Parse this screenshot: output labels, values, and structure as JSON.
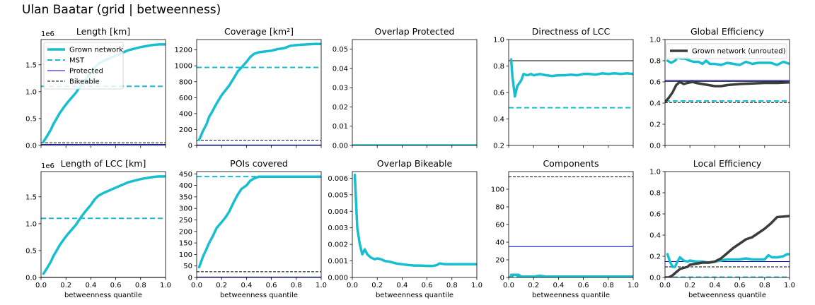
{
  "figure": {
    "title": "Ulan Baatar (grid | betweenness)"
  },
  "colors": {
    "grown": "#17becf",
    "mst": "#17becf",
    "protected": "#0000cc",
    "bikeable": "#000000",
    "unrouted": "#3c3c3c"
  },
  "chart_data": [
    {
      "id": "length",
      "type": "line",
      "title": "Length [km]",
      "xlabel": "",
      "ylabel": "",
      "xlim": [
        0,
        1
      ],
      "ylim": [
        0,
        1.97
      ],
      "y_ticks": [
        "0.0",
        "0.5",
        "1.0",
        "1.5"
      ],
      "y_tick_values": [
        0,
        0.5,
        1.0,
        1.5
      ],
      "offset_label": "1e6",
      "x_ticklabels": false,
      "legend": {
        "position": "top-left",
        "entries": [
          {
            "label": "Grown network",
            "style": "thick"
          },
          {
            "label": "MST",
            "style": "dashed"
          },
          {
            "label": "Protected",
            "style": "thin-blue"
          },
          {
            "label": "Bikeable",
            "style": "dashed-black"
          }
        ]
      },
      "hlines": [
        {
          "y": 1.1,
          "style": "mst"
        },
        {
          "y": 0.02,
          "style": "protected"
        },
        {
          "y": 0.05,
          "style": "bikeable"
        }
      ],
      "series": [
        {
          "name": "Grown network",
          "style": "grown",
          "x": [
            0.02,
            0.05,
            0.08,
            0.1,
            0.12,
            0.15,
            0.18,
            0.2,
            0.22,
            0.25,
            0.28,
            0.3,
            0.33,
            0.36,
            0.4,
            0.43,
            0.46,
            0.5,
            0.55,
            0.6,
            0.65,
            0.7,
            0.75,
            0.8,
            0.85,
            0.9,
            0.95,
            1.0
          ],
          "y": [
            0.07,
            0.18,
            0.3,
            0.4,
            0.48,
            0.6,
            0.7,
            0.76,
            0.82,
            0.9,
            0.98,
            1.05,
            1.15,
            1.24,
            1.35,
            1.45,
            1.52,
            1.57,
            1.62,
            1.67,
            1.72,
            1.77,
            1.8,
            1.83,
            1.85,
            1.87,
            1.88,
            1.88
          ]
        }
      ]
    },
    {
      "id": "coverage",
      "type": "line",
      "title": "Coverage [km²]",
      "xlabel": "",
      "ylabel": "",
      "xlim": [
        0,
        1
      ],
      "ylim": [
        0,
        1330
      ],
      "y_ticks": [
        "0",
        "200",
        "400",
        "600",
        "800",
        "1000",
        "1200"
      ],
      "y_tick_values": [
        0,
        200,
        400,
        600,
        800,
        1000,
        1200
      ],
      "x_ticklabels": false,
      "hlines": [
        {
          "y": 980,
          "style": "mst"
        },
        {
          "y": 65,
          "style": "bikeable"
        },
        {
          "y": 5,
          "style": "protected"
        }
      ],
      "series": [
        {
          "name": "Grown network",
          "style": "grown",
          "x": [
            0.02,
            0.05,
            0.08,
            0.1,
            0.12,
            0.15,
            0.18,
            0.2,
            0.23,
            0.26,
            0.3,
            0.33,
            0.36,
            0.4,
            0.43,
            0.46,
            0.5,
            0.55,
            0.6,
            0.65,
            0.7,
            0.75,
            0.8,
            0.85,
            0.9,
            0.95,
            1.0
          ],
          "y": [
            70,
            180,
            270,
            360,
            410,
            500,
            580,
            630,
            690,
            750,
            850,
            930,
            980,
            1050,
            1110,
            1150,
            1170,
            1180,
            1190,
            1210,
            1220,
            1250,
            1260,
            1265,
            1270,
            1275,
            1275
          ]
        }
      ]
    },
    {
      "id": "overlap-protected",
      "type": "line",
      "title": "Overlap Protected",
      "xlabel": "",
      "ylabel": "",
      "xlim": [
        0,
        1
      ],
      "ylim": [
        0,
        0.055
      ],
      "y_ticks": [
        "0.00",
        "0.01",
        "0.02",
        "0.03",
        "0.04",
        "0.05"
      ],
      "y_tick_values": [
        0,
        0.01,
        0.02,
        0.03,
        0.04,
        0.05
      ],
      "x_ticklabels": false,
      "hlines": [],
      "series": [
        {
          "name": "Grown network",
          "style": "grown",
          "x": [
            0.0,
            1.0
          ],
          "y": [
            0.0,
            0.0
          ]
        }
      ]
    },
    {
      "id": "directness",
      "type": "line",
      "title": "Directness of LCC",
      "xlabel": "",
      "ylabel": "",
      "xlim": [
        0,
        1
      ],
      "ylim": [
        0.2,
        1.0
      ],
      "y_ticks": [
        "0.2",
        "0.4",
        "0.6",
        "0.8",
        "1.0"
      ],
      "y_tick_values": [
        0.2,
        0.4,
        0.6,
        0.8,
        1.0
      ],
      "x_ticklabels": false,
      "hlines": [
        {
          "y": 0.84,
          "style": "bikeable-solid"
        },
        {
          "y": 0.485,
          "style": "mst"
        }
      ],
      "series": [
        {
          "name": "Grown network",
          "style": "grown",
          "x": [
            0.02,
            0.03,
            0.05,
            0.07,
            0.1,
            0.12,
            0.15,
            0.18,
            0.2,
            0.25,
            0.3,
            0.35,
            0.4,
            0.45,
            0.5,
            0.55,
            0.6,
            0.65,
            0.7,
            0.75,
            0.8,
            0.85,
            0.9,
            0.95,
            1.0
          ],
          "y": [
            0.85,
            0.72,
            0.57,
            0.65,
            0.69,
            0.74,
            0.73,
            0.74,
            0.73,
            0.74,
            0.73,
            0.725,
            0.73,
            0.73,
            0.735,
            0.73,
            0.74,
            0.74,
            0.735,
            0.745,
            0.74,
            0.745,
            0.74,
            0.745,
            0.74
          ]
        }
      ]
    },
    {
      "id": "global-efficiency",
      "type": "line",
      "title": "Global Efficiency",
      "xlabel": "",
      "ylabel": "",
      "xlim": [
        0,
        1
      ],
      "ylim": [
        0,
        1.0
      ],
      "y_ticks": [
        "0.0",
        "0.2",
        "0.4",
        "0.6",
        "0.8",
        "1.0"
      ],
      "y_tick_values": [
        0,
        0.2,
        0.4,
        0.6,
        0.8,
        1.0
      ],
      "x_ticklabels": false,
      "legend": {
        "position": "top-right",
        "entries": [
          {
            "label": "Grown network (unrouted)",
            "style": "unrouted"
          }
        ]
      },
      "hlines": [
        {
          "y": 0.615,
          "style": "protected"
        },
        {
          "y": 0.605,
          "style": "bikeable-solid"
        },
        {
          "y": 0.42,
          "style": "mst"
        },
        {
          "y": 0.405,
          "style": "bikeable"
        }
      ],
      "series": [
        {
          "name": "Grown network",
          "style": "grown",
          "x": [
            0.02,
            0.05,
            0.08,
            0.1,
            0.13,
            0.16,
            0.2,
            0.23,
            0.27,
            0.3,
            0.33,
            0.36,
            0.4,
            0.45,
            0.5,
            0.55,
            0.6,
            0.65,
            0.7,
            0.75,
            0.8,
            0.85,
            0.9,
            0.95,
            1.0
          ],
          "y": [
            0.8,
            0.78,
            0.8,
            0.83,
            0.82,
            0.82,
            0.8,
            0.79,
            0.79,
            0.77,
            0.8,
            0.77,
            0.77,
            0.76,
            0.78,
            0.77,
            0.76,
            0.79,
            0.77,
            0.78,
            0.78,
            0.78,
            0.76,
            0.79,
            0.77
          ]
        },
        {
          "name": "Grown network (unrouted)",
          "style": "unrouted",
          "x": [
            0.0,
            0.03,
            0.06,
            0.09,
            0.12,
            0.15,
            0.18,
            0.22,
            0.25,
            0.3,
            0.35,
            0.4,
            0.45,
            0.5,
            0.55,
            0.6,
            0.7,
            0.8,
            0.9,
            1.0
          ],
          "y": [
            0.41,
            0.45,
            0.5,
            0.57,
            0.6,
            0.58,
            0.59,
            0.6,
            0.59,
            0.58,
            0.57,
            0.56,
            0.56,
            0.57,
            0.575,
            0.58,
            0.585,
            0.59,
            0.59,
            0.595
          ]
        }
      ]
    },
    {
      "id": "length-lcc",
      "type": "line",
      "title": "Length of LCC [km]",
      "xlabel": "betweenness quantile",
      "ylabel": "",
      "xlim": [
        0,
        1
      ],
      "ylim": [
        0,
        1.97
      ],
      "y_ticks": [
        "0.0",
        "0.5",
        "1.0",
        "1.5"
      ],
      "y_tick_values": [
        0,
        0.5,
        1.0,
        1.5
      ],
      "offset_label": "1e6",
      "x_ticklabels": true,
      "hlines": [
        {
          "y": 1.1,
          "style": "mst"
        },
        {
          "y": 0.003,
          "style": "bikeable-solid"
        }
      ],
      "series": [
        {
          "name": "Grown network",
          "style": "grown",
          "x": [
            0.02,
            0.05,
            0.08,
            0.1,
            0.12,
            0.15,
            0.18,
            0.2,
            0.22,
            0.25,
            0.28,
            0.3,
            0.33,
            0.36,
            0.4,
            0.43,
            0.46,
            0.5,
            0.55,
            0.6,
            0.65,
            0.7,
            0.75,
            0.8,
            0.85,
            0.9,
            0.95,
            1.0
          ],
          "y": [
            0.07,
            0.18,
            0.3,
            0.4,
            0.48,
            0.6,
            0.7,
            0.76,
            0.82,
            0.9,
            0.98,
            1.05,
            1.15,
            1.24,
            1.35,
            1.45,
            1.52,
            1.57,
            1.62,
            1.67,
            1.72,
            1.77,
            1.8,
            1.83,
            1.85,
            1.87,
            1.88,
            1.88
          ]
        }
      ]
    },
    {
      "id": "pois",
      "type": "line",
      "title": "POIs covered",
      "xlabel": "betweenness quantile",
      "ylabel": "",
      "xlim": [
        0,
        1
      ],
      "ylim": [
        0,
        460
      ],
      "y_ticks": [
        "0",
        "50",
        "100",
        "150",
        "200",
        "250",
        "300",
        "350",
        "400",
        "450"
      ],
      "y_tick_values": [
        0,
        50,
        100,
        150,
        200,
        250,
        300,
        350,
        400,
        450
      ],
      "x_ticklabels": true,
      "hlines": [
        {
          "y": 438,
          "style": "mst"
        },
        {
          "y": 25,
          "style": "bikeable"
        },
        {
          "y": 2,
          "style": "protected"
        }
      ],
      "series": [
        {
          "name": "Grown network",
          "style": "grown",
          "x": [
            0.02,
            0.05,
            0.08,
            0.1,
            0.13,
            0.16,
            0.2,
            0.23,
            0.26,
            0.3,
            0.33,
            0.36,
            0.4,
            0.43,
            0.46,
            0.5,
            0.55,
            0.6,
            0.7,
            0.8,
            0.9,
            1.0
          ],
          "y": [
            45,
            90,
            125,
            150,
            180,
            215,
            240,
            260,
            285,
            330,
            360,
            385,
            400,
            420,
            430,
            438,
            438,
            438,
            438,
            438,
            438,
            438
          ]
        }
      ]
    },
    {
      "id": "overlap-bikeable",
      "type": "line",
      "title": "Overlap Bikeable",
      "xlabel": "betweenness quantile",
      "ylabel": "",
      "xlim": [
        0,
        1
      ],
      "ylim": [
        0,
        0.0064
      ],
      "y_ticks": [
        "0.000",
        "0.001",
        "0.002",
        "0.003",
        "0.004",
        "0.005",
        "0.006"
      ],
      "y_tick_values": [
        0,
        0.001,
        0.002,
        0.003,
        0.004,
        0.005,
        0.006
      ],
      "x_ticklabels": true,
      "hlines": [],
      "series": [
        {
          "name": "Grown network",
          "style": "grown",
          "x": [
            0.02,
            0.04,
            0.06,
            0.08,
            0.1,
            0.12,
            0.15,
            0.18,
            0.2,
            0.23,
            0.26,
            0.3,
            0.35,
            0.4,
            0.45,
            0.5,
            0.55,
            0.6,
            0.65,
            0.68,
            0.7,
            0.75,
            0.8,
            0.85,
            0.9,
            0.95,
            1.0
          ],
          "y": [
            0.0062,
            0.003,
            0.002,
            0.0014,
            0.0017,
            0.0014,
            0.0012,
            0.0011,
            0.00115,
            0.0011,
            0.001,
            0.00095,
            0.00085,
            0.0008,
            0.00075,
            0.00072,
            0.00072,
            0.0007,
            0.0007,
            0.00075,
            0.00085,
            0.0008,
            0.0008,
            0.0008,
            0.0008,
            0.0008,
            0.0008
          ]
        }
      ]
    },
    {
      "id": "components",
      "type": "line",
      "title": "Components",
      "xlabel": "betweenness quantile",
      "ylabel": "",
      "xlim": [
        0,
        1
      ],
      "ylim": [
        0,
        120
      ],
      "y_ticks": [
        "0",
        "20",
        "40",
        "60",
        "80",
        "100"
      ],
      "y_tick_values": [
        0,
        20,
        40,
        60,
        80,
        100
      ],
      "x_ticklabels": true,
      "hlines": [
        {
          "y": 114,
          "style": "bikeable"
        },
        {
          "y": 35,
          "style": "protected"
        },
        {
          "y": 1,
          "style": "mst"
        }
      ],
      "series": [
        {
          "name": "Grown network",
          "style": "grown",
          "x": [
            0.02,
            0.05,
            0.08,
            0.1,
            0.15,
            0.2,
            0.25,
            0.3,
            0.4,
            0.5,
            0.6,
            0.7,
            0.8,
            0.9,
            1.0
          ],
          "y": [
            3,
            3,
            3,
            1,
            1,
            1,
            2,
            1,
            1,
            1,
            1,
            1,
            1,
            1,
            1
          ]
        }
      ]
    },
    {
      "id": "local-efficiency",
      "type": "line",
      "title": "Local Efficiency",
      "xlabel": "betweenness quantile",
      "ylabel": "",
      "xlim": [
        0,
        1
      ],
      "ylim": [
        0,
        1.0
      ],
      "y_ticks": [
        "0.0",
        "0.2",
        "0.4",
        "0.6",
        "0.8",
        "1.0"
      ],
      "y_tick_values": [
        0,
        0.2,
        0.4,
        0.6,
        0.8,
        1.0
      ],
      "x_ticklabels": true,
      "hlines": [
        {
          "y": 0.15,
          "style": "protected"
        },
        {
          "y": 0.1,
          "style": "bikeable"
        },
        {
          "y": 0.003,
          "style": "mst"
        }
      ],
      "series": [
        {
          "name": "Grown network",
          "style": "grown",
          "x": [
            0.02,
            0.04,
            0.06,
            0.08,
            0.1,
            0.12,
            0.15,
            0.18,
            0.2,
            0.25,
            0.3,
            0.35,
            0.4,
            0.45,
            0.5,
            0.55,
            0.6,
            0.65,
            0.7,
            0.75,
            0.8,
            0.83,
            0.86,
            0.9,
            0.95,
            0.98,
            1.0
          ],
          "y": [
            0.22,
            0.15,
            0.1,
            0.1,
            0.15,
            0.19,
            0.16,
            0.15,
            0.16,
            0.15,
            0.15,
            0.14,
            0.15,
            0.16,
            0.17,
            0.17,
            0.17,
            0.18,
            0.17,
            0.17,
            0.17,
            0.21,
            0.19,
            0.19,
            0.2,
            0.22,
            0.22
          ]
        },
        {
          "name": "Grown network (unrouted)",
          "style": "unrouted",
          "x": [
            0.0,
            0.03,
            0.06,
            0.09,
            0.12,
            0.15,
            0.18,
            0.2,
            0.25,
            0.3,
            0.35,
            0.4,
            0.45,
            0.5,
            0.55,
            0.6,
            0.65,
            0.7,
            0.75,
            0.8,
            0.85,
            0.9,
            0.95,
            1.0
          ],
          "y": [
            0.0,
            0.0,
            0.02,
            0.05,
            0.08,
            0.09,
            0.1,
            0.12,
            0.13,
            0.14,
            0.14,
            0.15,
            0.18,
            0.23,
            0.28,
            0.32,
            0.36,
            0.38,
            0.42,
            0.46,
            0.51,
            0.57,
            0.575,
            0.58
          ]
        }
      ]
    }
  ]
}
